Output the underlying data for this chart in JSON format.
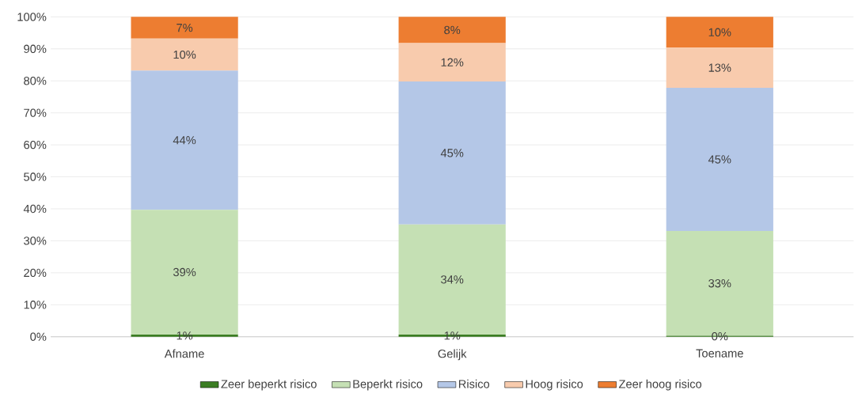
{
  "chart_data": {
    "type": "bar",
    "stacked": true,
    "categories": [
      "Afname",
      "Gelijk",
      "Toename"
    ],
    "series": [
      {
        "name": "Zeer beperkt risico",
        "color": "#3b7d23",
        "values": [
          0.7,
          0.7,
          0.3
        ],
        "value_labels": [
          "1%",
          "1%",
          "0%"
        ]
      },
      {
        "name": "Beperkt risico",
        "color": "#c5e0b4",
        "values": [
          39,
          34.4,
          32.8
        ],
        "value_labels": [
          "39%",
          "34%",
          "33%"
        ]
      },
      {
        "name": "Risico",
        "color": "#b4c7e7",
        "values": [
          43.5,
          44.7,
          44.7
        ],
        "value_labels": [
          "44%",
          "45%",
          "45%"
        ]
      },
      {
        "name": "Hoog risico",
        "color": "#f8cbad",
        "values": [
          10,
          12,
          12.6
        ],
        "value_labels": [
          "10%",
          "12%",
          "13%"
        ]
      },
      {
        "name": "Zeer hoog risico",
        "color": "#ed7d31",
        "values": [
          6.8,
          8.2,
          9.6
        ],
        "value_labels": [
          "7%",
          "8%",
          "10%"
        ]
      }
    ],
    "ylim": [
      0,
      100
    ],
    "yticks": [
      {
        "value": 0,
        "label": "0%"
      },
      {
        "value": 10,
        "label": "10%"
      },
      {
        "value": 20,
        "label": "20%"
      },
      {
        "value": 30,
        "label": "30%"
      },
      {
        "value": 40,
        "label": "40%"
      },
      {
        "value": 50,
        "label": "50%"
      },
      {
        "value": 60,
        "label": "60%"
      },
      {
        "value": 70,
        "label": "70%"
      },
      {
        "value": 80,
        "label": "80%"
      },
      {
        "value": 90,
        "label": "90%"
      },
      {
        "value": 100,
        "label": "100%"
      }
    ],
    "grid": "y",
    "legend": "bottom"
  }
}
